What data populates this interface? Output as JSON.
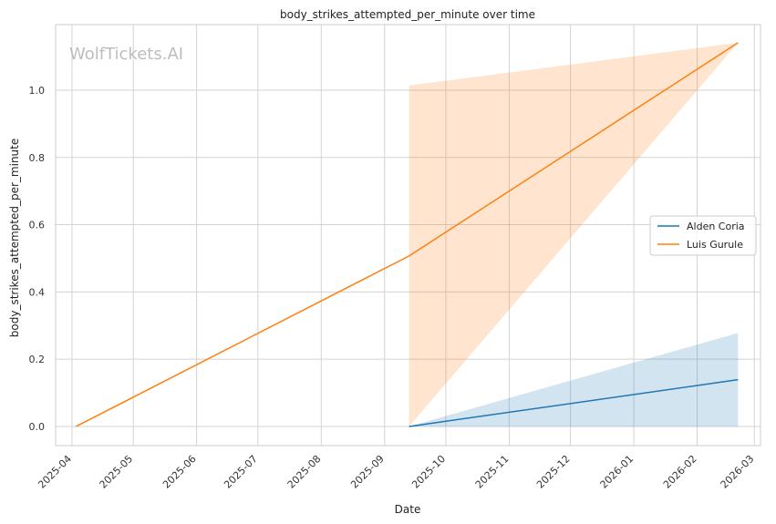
{
  "chart_data": {
    "type": "line",
    "title": "body_strikes_attempted_per_minute over time",
    "xlabel": "Date",
    "ylabel": "body_strikes_attempted_per_minute",
    "watermark": "WolfTickets.AI",
    "xlim": [
      "2025-03-24",
      "2026-03-04"
    ],
    "ylim": [
      -0.057,
      1.195
    ],
    "x_ticks": [
      "2025-04",
      "2025-05",
      "2025-06",
      "2025-07",
      "2025-08",
      "2025-09",
      "2025-10",
      "2025-11",
      "2025-12",
      "2026-01",
      "2026-02",
      "2026-03"
    ],
    "y_ticks": [
      "0.0",
      "0.2",
      "0.4",
      "0.6",
      "0.8",
      "1.0"
    ],
    "grid": true,
    "legend_position": "center-right",
    "series": [
      {
        "name": "Alden Coria",
        "color": "#1f77b4",
        "points": [
          {
            "x": "2025-09-13",
            "y": 0.0
          },
          {
            "x": "2026-02-21",
            "y": 0.139
          }
        ],
        "band": [
          {
            "x": "2025-09-13",
            "low": 0.0,
            "high": 0.0
          },
          {
            "x": "2026-02-21",
            "low": 0.0,
            "high": 0.278
          }
        ]
      },
      {
        "name": "Luis Gurule",
        "color": "#ff7f0e",
        "points": [
          {
            "x": "2025-04-03",
            "y": 0.0
          },
          {
            "x": "2025-09-13",
            "y": 0.507
          },
          {
            "x": "2026-02-21",
            "y": 1.141
          }
        ],
        "band": [
          {
            "x": "2025-09-13",
            "low": 0.0,
            "high": 1.014
          },
          {
            "x": "2026-02-21",
            "low": 1.141,
            "high": 1.141
          }
        ]
      }
    ]
  }
}
